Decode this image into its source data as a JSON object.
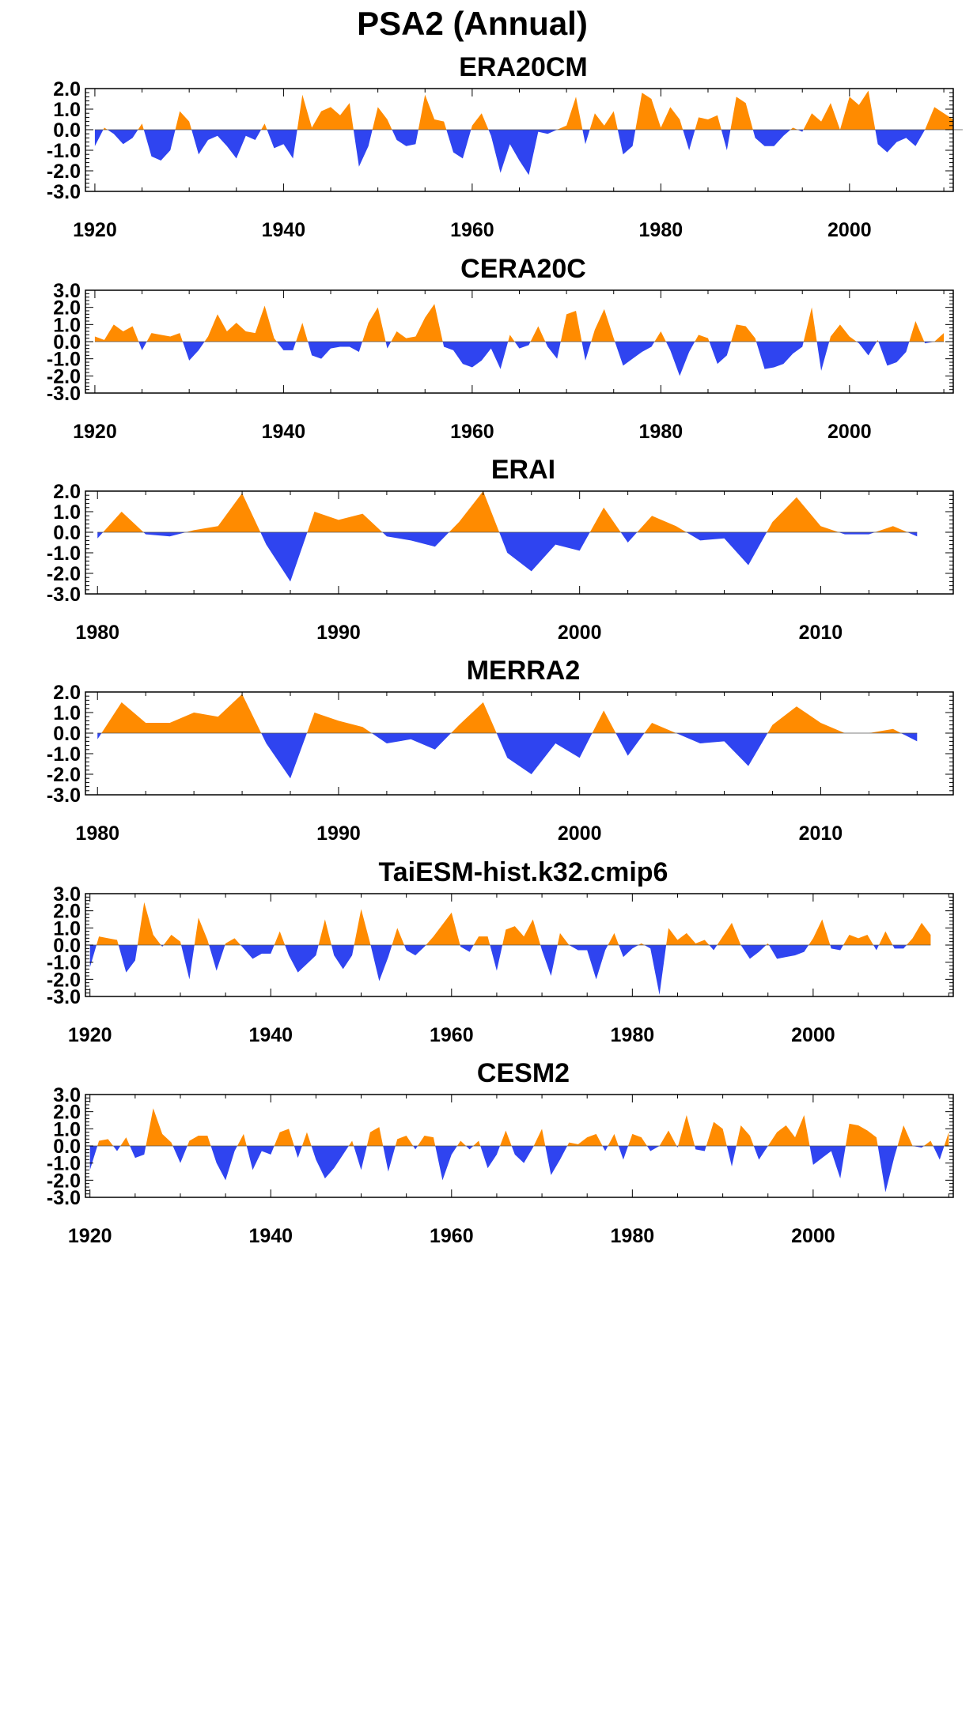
{
  "figure": {
    "title": "PSA2 (Annual)",
    "colors": {
      "positive": "#ff8b00",
      "negative": "#2f44f0",
      "axis": "#000000"
    }
  },
  "chart_data": [
    {
      "type": "area",
      "title": "ERA20CM",
      "xlim": [
        1919,
        2011
      ],
      "ylim": [
        -3.0,
        2.0
      ],
      "yticks": [
        2.0,
        1.0,
        0.0,
        -1.0,
        -2.0,
        -3.0
      ],
      "xticks": [
        1920,
        1940,
        1960,
        1980,
        2000
      ],
      "series": [
        {
          "x0": 1920,
          "values": [
            -0.8,
            0.1,
            -0.2,
            -0.7,
            -0.4,
            0.3,
            -1.3,
            -1.5,
            -1.0,
            0.9,
            0.4,
            -1.2,
            -0.5,
            -0.3,
            -0.8,
            -1.4,
            -0.3,
            -0.5,
            0.3,
            -0.9,
            -0.7,
            -1.4,
            1.7,
            0.1,
            0.9,
            1.1,
            0.7,
            1.3,
            -1.8,
            -0.8,
            1.1,
            0.5,
            -0.5,
            -0.8,
            -0.7,
            1.7,
            0.5,
            0.4,
            -1.1,
            -1.4,
            0.2,
            0.8,
            -0.3,
            -2.1,
            -0.7,
            -1.5,
            -2.2,
            -0.1,
            -0.2,
            0.0,
            0.2,
            1.6,
            -0.7,
            0.8,
            0.2,
            0.9,
            -1.2,
            -0.8,
            1.8,
            1.5,
            0.1,
            1.1,
            0.5,
            -1.0,
            0.6,
            0.5,
            0.7,
            -1.0,
            1.6,
            1.3,
            -0.4,
            -0.8,
            -0.8,
            -0.3,
            0.1,
            -0.1,
            0.8,
            0.4,
            1.3,
            0.0,
            1.6,
            1.2,
            1.9,
            -0.7,
            -1.1,
            -0.6,
            -0.4,
            -0.8,
            0.0,
            1.1,
            0.8,
            0.5,
            0.8
          ]
        }
      ]
    },
    {
      "type": "area",
      "title": "CERA20C",
      "xlim": [
        1919,
        2011
      ],
      "ylim": [
        -3.0,
        3.0
      ],
      "yticks": [
        3.0,
        2.0,
        1.0,
        0.0,
        -1.0,
        -2.0,
        -3.0
      ],
      "xticks": [
        1920,
        1940,
        1960,
        1980,
        2000
      ],
      "series": [
        {
          "x0": 1920,
          "values": [
            0.3,
            0.1,
            1.0,
            0.6,
            0.9,
            -0.5,
            0.5,
            0.4,
            0.3,
            0.5,
            -1.1,
            -0.5,
            0.3,
            1.6,
            0.6,
            1.1,
            0.6,
            0.5,
            2.1,
            0.2,
            -0.5,
            -0.5,
            1.1,
            -0.8,
            -1.0,
            -0.4,
            -0.3,
            -0.3,
            -0.6,
            1.1,
            2.0,
            -0.4,
            0.6,
            0.2,
            0.3,
            1.4,
            2.2,
            -0.3,
            -0.5,
            -1.3,
            -1.5,
            -1.1,
            -0.4,
            -1.6,
            0.4,
            -0.4,
            -0.2,
            0.9,
            -0.3,
            -1.0,
            1.6,
            1.8,
            -1.1,
            0.7,
            1.9,
            0.2,
            -1.4,
            -1.0,
            -0.6,
            -0.3,
            0.6,
            -0.5,
            -2.0,
            -0.6,
            0.4,
            0.2,
            -1.3,
            -0.8,
            1.0,
            0.9,
            0.2,
            -1.6,
            -1.5,
            -1.3,
            -0.7,
            -0.3,
            2.0,
            -1.7,
            0.3,
            1.0,
            0.3,
            -0.1,
            -0.8,
            0.1,
            -1.4,
            -1.2,
            -0.6,
            1.2,
            -0.1,
            0.0,
            0.5
          ]
        }
      ]
    },
    {
      "type": "area",
      "title": "ERAI",
      "xlim": [
        1979.5,
        2015.5
      ],
      "ylim": [
        -3.0,
        2.0
      ],
      "yticks": [
        2.0,
        1.0,
        0.0,
        -1.0,
        -2.0,
        -3.0
      ],
      "xticks": [
        1980,
        1990,
        2000,
        2010
      ],
      "series": [
        {
          "x0": 1980,
          "values": [
            -0.3,
            1.0,
            -0.1,
            -0.2,
            0.1,
            0.3,
            1.9,
            -0.6,
            -2.4,
            1.0,
            0.6,
            0.9,
            -0.2,
            -0.4,
            -0.7,
            0.5,
            2.0,
            -1.0,
            -1.9,
            -0.6,
            -0.9,
            1.2,
            -0.5,
            0.8,
            0.3,
            -0.4,
            -0.3,
            -1.6,
            0.5,
            1.7,
            0.3,
            -0.1,
            -0.1,
            0.3,
            -0.2
          ]
        }
      ]
    },
    {
      "type": "area",
      "title": "MERRA2",
      "xlim": [
        1979.5,
        2015.5
      ],
      "ylim": [
        -3.0,
        2.0
      ],
      "yticks": [
        2.0,
        1.0,
        0.0,
        -1.0,
        -2.0,
        -3.0
      ],
      "xticks": [
        1980,
        1990,
        2000,
        2010
      ],
      "series": [
        {
          "x0": 1980,
          "values": [
            -0.3,
            1.5,
            0.5,
            0.5,
            1.0,
            0.8,
            1.9,
            -0.5,
            -2.2,
            1.0,
            0.6,
            0.3,
            -0.5,
            -0.3,
            -0.8,
            0.4,
            1.5,
            -1.2,
            -2.0,
            -0.5,
            -1.2,
            1.1,
            -1.1,
            0.5,
            0.0,
            -0.5,
            -0.4,
            -1.6,
            0.4,
            1.3,
            0.5,
            0.0,
            0.0,
            0.2,
            -0.4
          ]
        }
      ]
    },
    {
      "type": "area",
      "title": "TaiESM-hist.k32.cmip6",
      "xlim": [
        1919.5,
        2015.5
      ],
      "ylim": [
        -3.0,
        3.0
      ],
      "yticks": [
        3.0,
        2.0,
        1.0,
        0.0,
        -1.0,
        -2.0,
        -3.0
      ],
      "xticks": [
        1920,
        1940,
        1960,
        1980,
        2000
      ],
      "series": [
        {
          "x0": 1920,
          "values": [
            -1.3,
            0.5,
            0.4,
            0.3,
            -1.6,
            -0.9,
            2.5,
            0.6,
            -0.1,
            0.6,
            0.2,
            -2.0,
            1.6,
            0.3,
            -1.5,
            0.1,
            0.4,
            -0.2,
            -0.8,
            -0.5,
            -0.5,
            0.8,
            -0.6,
            -1.6,
            -1.1,
            -0.6,
            1.5,
            -0.6,
            -1.4,
            -0.6,
            2.1,
            0.1,
            -2.1,
            -0.7,
            1.0,
            -0.3,
            -0.6,
            -0.1,
            0.5,
            1.2,
            1.9,
            -0.1,
            -0.4,
            0.5,
            0.5,
            -1.5,
            0.9,
            1.1,
            0.5,
            1.5,
            -0.3,
            -1.8,
            0.7,
            0.0,
            -0.3,
            -0.3,
            -2.0,
            -0.3,
            0.7,
            -0.7,
            -0.2,
            0.1,
            -0.2,
            -2.9,
            1.0,
            0.3,
            0.7,
            0.1,
            0.3,
            -0.3,
            0.5,
            1.3,
            0.0,
            -0.8,
            -0.4,
            0.1,
            -0.8,
            -0.7,
            -0.6,
            -0.4,
            0.4,
            1.5,
            -0.2,
            -0.3,
            0.6,
            0.4,
            0.6,
            -0.3,
            0.8,
            -0.2,
            -0.2,
            0.4,
            1.3,
            0.6
          ]
        }
      ]
    },
    {
      "type": "area",
      "title": "CESM2",
      "xlim": [
        1919.5,
        2015.5
      ],
      "ylim": [
        -3.0,
        3.0
      ],
      "yticks": [
        3.0,
        2.0,
        1.0,
        0.0,
        -1.0,
        -2.0,
        -3.0
      ],
      "xticks": [
        1920,
        1940,
        1960,
        1980,
        2000
      ],
      "series": [
        {
          "x0": 1920,
          "values": [
            -1.4,
            0.3,
            0.4,
            -0.3,
            0.5,
            -0.7,
            -0.5,
            2.2,
            0.7,
            0.2,
            -1.0,
            0.3,
            0.6,
            0.6,
            -1.0,
            -2.0,
            -0.3,
            0.7,
            -1.4,
            -0.3,
            -0.5,
            0.8,
            1.0,
            -0.7,
            0.8,
            -0.8,
            -1.9,
            -1.3,
            -0.5,
            0.3,
            -1.4,
            0.8,
            1.1,
            -1.5,
            0.4,
            0.6,
            -0.2,
            0.6,
            0.5,
            -2.0,
            -0.5,
            0.3,
            -0.2,
            0.3,
            -1.3,
            -0.5,
            0.9,
            -0.5,
            -1.0,
            -0.1,
            1.0,
            -1.7,
            -0.8,
            0.2,
            0.1,
            0.5,
            0.7,
            -0.3,
            0.7,
            -0.8,
            0.7,
            0.5,
            -0.3,
            0.0,
            0.9,
            -0.1,
            1.8,
            -0.2,
            -0.3,
            1.4,
            1.0,
            -1.2,
            1.2,
            0.6,
            -0.8,
            0.0,
            0.8,
            1.2,
            0.5,
            1.8,
            -1.1,
            -0.7,
            -0.3,
            -1.9,
            1.3,
            1.2,
            0.9,
            0.5,
            -2.7,
            -0.6,
            1.2,
            0.0,
            -0.1,
            0.3,
            -0.8,
            0.8
          ]
        }
      ]
    }
  ]
}
